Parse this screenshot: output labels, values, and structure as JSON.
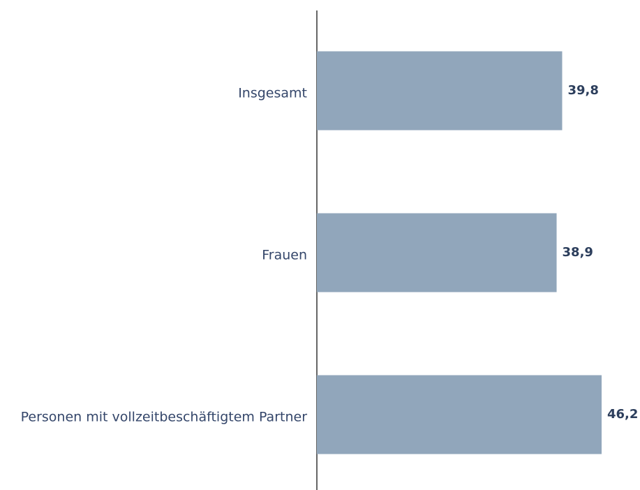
{
  "chart_data": {
    "type": "bar",
    "orientation": "horizontal",
    "categories": [
      "Insgesamt",
      "Frauen",
      "Personen mit vollzeitbeschäftigtem Partner"
    ],
    "values": [
      39.8,
      38.9,
      46.2
    ],
    "value_labels": [
      "39,8",
      "38,9",
      "46,2"
    ],
    "color": "#91a6bb"
  }
}
